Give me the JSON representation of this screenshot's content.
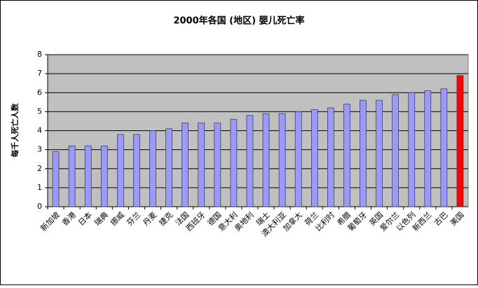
{
  "chart_data": {
    "type": "bar",
    "title": "2000年各国 (地区) 婴儿死亡率",
    "y_label": "每千人死亡人数",
    "categories": [
      "新加坡",
      "香港",
      "日本",
      "瑞典",
      "挪威",
      "芬兰",
      "丹麦",
      "捷克",
      "法国",
      "西班牙",
      "德国",
      "意大利",
      "奥地利",
      "瑞士",
      "澳大利亚",
      "加拿大",
      "荷兰",
      "比利时",
      "希腊",
      "葡萄牙",
      "英国",
      "爱尔兰",
      "以色列",
      "新西兰",
      "古巴",
      "美国"
    ],
    "values": [
      2.9,
      3.2,
      3.2,
      3.2,
      3.8,
      3.8,
      4.0,
      4.1,
      4.4,
      4.4,
      4.4,
      4.6,
      4.8,
      4.9,
      4.9,
      5.0,
      5.1,
      5.2,
      5.4,
      5.6,
      5.6,
      5.9,
      6.0,
      6.1,
      6.2,
      6.9
    ],
    "colors": [
      "#9999ff",
      "#9999ff",
      "#9999ff",
      "#9999ff",
      "#9999ff",
      "#9999ff",
      "#9999ff",
      "#9999ff",
      "#9999ff",
      "#9999ff",
      "#9999ff",
      "#9999ff",
      "#9999ff",
      "#9999ff",
      "#9999ff",
      "#9999ff",
      "#9999ff",
      "#9999ff",
      "#9999ff",
      "#9999ff",
      "#9999ff",
      "#9999ff",
      "#9999ff",
      "#9999ff",
      "#9999ff",
      "#ff0000"
    ],
    "ylim": [
      0,
      8
    ],
    "yticks": [
      0,
      1,
      2,
      3,
      4,
      5,
      6,
      7,
      8
    ],
    "grid": true
  }
}
